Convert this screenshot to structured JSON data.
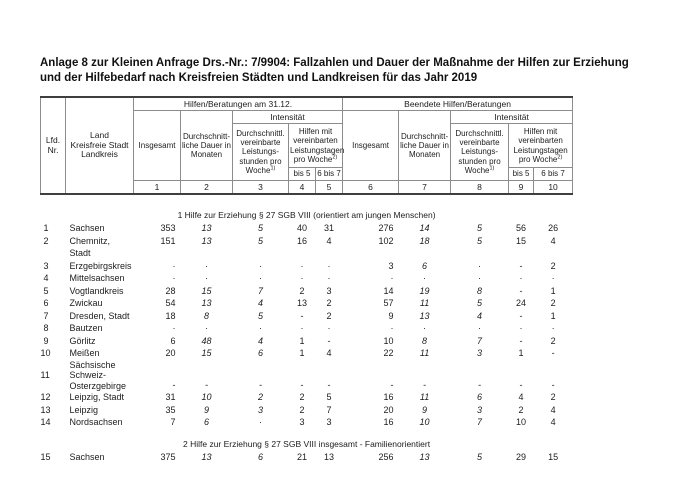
{
  "title_lines": [
    "Anlage 8 zur Kleinen Anfrage Drs.-Nr.: 7/9904: Fallzahlen und Dauer der Maßnahme der Hilfen zur Erziehung",
    "und der Hilfebedarf nach Kreisfreien Städten und Landkreisen für das Jahr 2019"
  ],
  "table": {
    "lfd_lines": [
      "Lfd.",
      "Nr."
    ],
    "land_lines": [
      "Land",
      "Kreisfreie Stadt",
      "Landkreis"
    ],
    "group_current": "Hilfen/Beratungen am 31.12.",
    "group_ended": "Beendete Hilfen/Beratungen",
    "labels": {
      "intensitaet": "Intensität",
      "insgesamt": "Insgesamt",
      "dauer": "Durchschnitt-liche Dauer in Monaten",
      "stunden": "Durchschnittl. vereinbarte Leistungs-stunden pro Woche",
      "fn1": "1)",
      "tage": "Hilfen mit vereinbarten Leistungstagen pro Woche",
      "fn2": "2)",
      "bis5": "bis 5",
      "b6b7": "6 bis 7"
    },
    "colnums": [
      "1",
      "2",
      "3",
      "4",
      "5",
      "6",
      "7",
      "8",
      "9",
      "10"
    ]
  },
  "sections": [
    {
      "heading": "1 Hilfe zur Erziehung § 27 SGB VIII (orientiert am jungen Menschen)",
      "rows": [
        {
          "nr": "1",
          "name": "Sachsen",
          "values": [
            "353",
            "13",
            "5",
            "40",
            "31",
            "276",
            "14",
            "5",
            "56",
            "26"
          ]
        },
        {
          "nr": "2",
          "name": "Chemnitz, Stadt",
          "values": [
            "151",
            "13",
            "5",
            "16",
            "4",
            "102",
            "18",
            "5",
            "15",
            "4"
          ]
        },
        {
          "nr": "3",
          "name": "Erzgebirgskreis",
          "values": [
            "·",
            "·",
            "·",
            "·",
            "·",
            "3",
            "6",
            "·",
            "-",
            "2"
          ]
        },
        {
          "nr": "4",
          "name": "Mittelsachsen",
          "values": [
            "·",
            "·",
            "·",
            "·",
            "·",
            "·",
            "·",
            "·",
            "·",
            "·"
          ]
        },
        {
          "nr": "5",
          "name": "Vogtlandkreis",
          "values": [
            "28",
            "15",
            "7",
            "2",
            "3",
            "14",
            "19",
            "8",
            "-",
            "1"
          ]
        },
        {
          "nr": "6",
          "name": "Zwickau",
          "values": [
            "54",
            "13",
            "4",
            "13",
            "2",
            "57",
            "11",
            "5",
            "24",
            "2"
          ]
        },
        {
          "nr": "7",
          "name": "Dresden, Stadt",
          "values": [
            "18",
            "8",
            "5",
            "-",
            "2",
            "9",
            "13",
            "4",
            "-",
            "1"
          ]
        },
        {
          "nr": "8",
          "name": "Bautzen",
          "values": [
            "·",
            "·",
            "·",
            "·",
            "·",
            "·",
            "·",
            "·",
            "·",
            "·"
          ]
        },
        {
          "nr": "9",
          "name": "Görlitz",
          "values": [
            "6",
            "48",
            "4",
            "1",
            "-",
            "10",
            "8",
            "7",
            "-",
            "2"
          ]
        },
        {
          "nr": "10",
          "name": "Meißen",
          "values": [
            "20",
            "15",
            "6",
            "1",
            "4",
            "22",
            "11",
            "3",
            "1",
            "-"
          ]
        },
        {
          "nr": "11",
          "name": "Sächsische Schweiz-Osterzgebirge",
          "tall": true,
          "values": [
            "-",
            "-",
            "-",
            "-",
            "-",
            "-",
            "-",
            "-",
            "-",
            "-"
          ]
        },
        {
          "nr": "12",
          "name": "Leipzig, Stadt",
          "values": [
            "31",
            "10",
            "2",
            "2",
            "5",
            "16",
            "11",
            "6",
            "4",
            "2"
          ]
        },
        {
          "nr": "13",
          "name": "Leipzig",
          "values": [
            "35",
            "9",
            "3",
            "2",
            "7",
            "20",
            "9",
            "3",
            "2",
            "4"
          ]
        },
        {
          "nr": "14",
          "name": "Nordsachsen",
          "values": [
            "7",
            "6",
            "·",
            "3",
            "3",
            "16",
            "10",
            "7",
            "10",
            "4"
          ]
        }
      ]
    },
    {
      "heading": "2 Hilfe zur Erziehung § 27 SGB VIII insgesamt - Familienorientiert",
      "rows": [
        {
          "nr": "15",
          "name": "Sachsen",
          "values": [
            "375",
            "13",
            "6",
            "21",
            "13",
            "256",
            "13",
            "5",
            "29",
            "15"
          ]
        }
      ]
    }
  ]
}
